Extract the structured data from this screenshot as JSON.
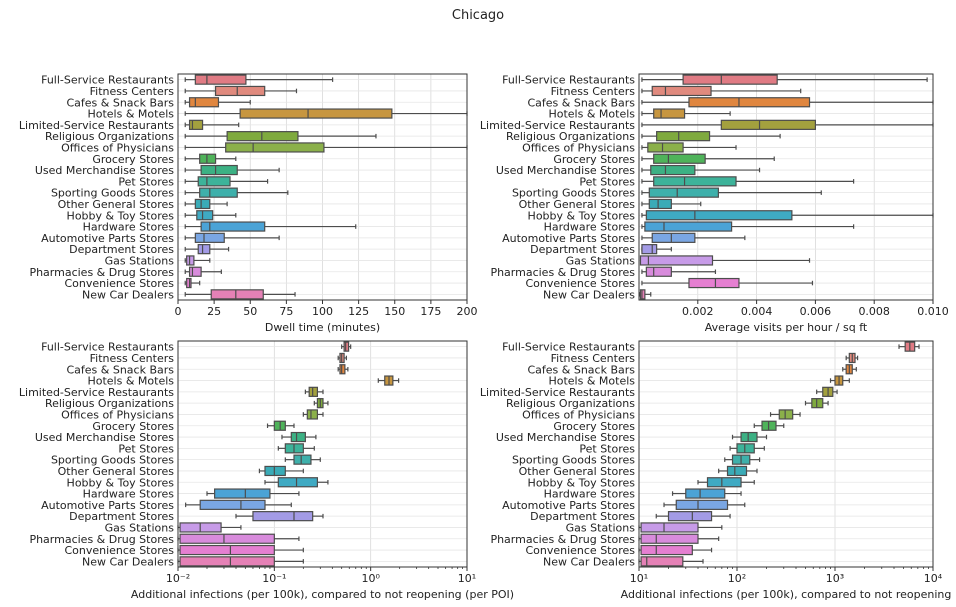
{
  "title": "Chicago",
  "colors": {
    "Full-Service Restaurants": "#e07b84",
    "Fitness Centers": "#e08a7e",
    "Cafes & Snack Bars": "#e0863f",
    "Hotels & Motels": "#c79640",
    "Limited-Service Restaurants": "#a3a13e",
    "Religious Organizations": "#7faa3e",
    "Offices of Physicians": "#8bb04a",
    "Grocery Stores": "#4fb35a",
    "Used Merchandise Stores": "#3cb184",
    "Pet Stores": "#3db39a",
    "Sporting Goods Stores": "#3eb0ab",
    "Other General Stores": "#3aabb7",
    "Hobby & Toy Stores": "#3faac3",
    "Hardware Stores": "#4ba3d6",
    "Automotive Parts Stores": "#7aa6e3",
    "Department Stores": "#a39be6",
    "Gas Stations": "#c79be8",
    "Pharmacies & Drug Stores": "#d88bdc",
    "Convenience Stores": "#e57fd1",
    "New Car Dealers": "#e581b6"
  },
  "chart_data": [
    {
      "type": "box",
      "orientation": "horizontal",
      "categories": [
        "Full-Service Restaurants",
        "Fitness Centers",
        "Cafes & Snack Bars",
        "Hotels & Motels",
        "Limited-Service Restaurants",
        "Religious Organizations",
        "Offices of Physicians",
        "Grocery Stores",
        "Used Merchandise Stores",
        "Pet Stores",
        "Sporting Goods Stores",
        "Other General Stores",
        "Hobby & Toy Stores",
        "Hardware Stores",
        "Automotive Parts Stores",
        "Department Stores",
        "Gas Stations",
        "Pharmacies & Drug Stores",
        "Convenience Stores",
        "New Car Dealers"
      ],
      "xlabel": "Dwell time (minutes)",
      "xscale": "linear",
      "xlim": [
        0,
        200
      ],
      "xticks": [
        0,
        25,
        50,
        75,
        100,
        125,
        150,
        175,
        200
      ],
      "xticklabels": [
        "0",
        "25",
        "50",
        "75",
        "100",
        "125",
        "150",
        "175",
        "200"
      ],
      "grid": true,
      "boxes": [
        [
          5,
          12,
          20,
          47,
          107
        ],
        [
          5,
          26,
          41,
          60,
          82
        ],
        [
          5,
          8,
          12,
          28,
          50
        ],
        [
          5,
          43,
          90,
          148,
          200
        ],
        [
          5,
          8,
          10,
          17,
          42
        ],
        [
          5,
          34,
          58,
          83,
          137
        ],
        [
          5,
          33,
          52,
          101,
          200
        ],
        [
          5,
          15,
          20,
          26,
          40
        ],
        [
          5,
          16,
          26,
          41,
          70
        ],
        [
          5,
          14,
          20,
          36,
          62
        ],
        [
          5,
          15,
          22,
          41,
          76
        ],
        [
          5,
          12,
          16,
          22,
          34
        ],
        [
          5,
          13,
          17,
          24,
          40
        ],
        [
          5,
          16,
          22,
          60,
          123
        ],
        [
          5,
          12,
          18,
          32,
          70
        ],
        [
          5,
          14,
          17,
          22,
          35
        ],
        [
          5,
          6,
          8,
          11,
          22
        ],
        [
          5,
          8,
          10,
          16,
          30
        ],
        [
          5,
          6,
          8,
          9,
          15
        ],
        [
          5,
          23,
          40,
          59,
          81
        ]
      ]
    },
    {
      "type": "box",
      "orientation": "horizontal",
      "categories": [
        "Full-Service Restaurants",
        "Fitness Centers",
        "Cafes & Snack Bars",
        "Hotels & Motels",
        "Limited-Service Restaurants",
        "Religious Organizations",
        "Offices of Physicians",
        "Grocery Stores",
        "Used Merchandise Stores",
        "Pet Stores",
        "Sporting Goods Stores",
        "Other General Stores",
        "Hobby & Toy Stores",
        "Hardware Stores",
        "Automotive Parts Stores",
        "Department Stores",
        "Gas Stations",
        "Pharmacies & Drug Stores",
        "Convenience Stores",
        "New Car Dealers"
      ],
      "xlabel": "Average visits per hour / sq ft",
      "xscale": "linear",
      "xlim": [
        0,
        0.01
      ],
      "xticks": [
        0.002,
        0.004,
        0.006,
        0.008,
        0.01
      ],
      "xticklabels": [
        "0.002",
        "0.004",
        "0.006",
        "0.008",
        "0.010"
      ],
      "grid": true,
      "boxes": [
        [
          0.0001,
          0.0015,
          0.0028,
          0.0047,
          0.0098
        ],
        [
          0.0001,
          0.00045,
          0.0009,
          0.00245,
          0.0055
        ],
        [
          0.0001,
          0.0017,
          0.0034,
          0.0058,
          0.01
        ],
        [
          0.0001,
          0.0005,
          0.00075,
          0.00155,
          0.0031
        ],
        [
          0.0001,
          0.0028,
          0.0041,
          0.006,
          0.01
        ],
        [
          0.0001,
          0.0006,
          0.00135,
          0.0024,
          0.0048
        ],
        [
          0.0001,
          0.0003,
          0.0008,
          0.0015,
          0.0033
        ],
        [
          0.0001,
          0.0005,
          0.001,
          0.00225,
          0.0046
        ],
        [
          0.0001,
          0.0004,
          0.0009,
          0.0019,
          0.0041
        ],
        [
          0.0001,
          0.0005,
          0.00155,
          0.0033,
          0.0073
        ],
        [
          0.0001,
          0.00035,
          0.0013,
          0.0027,
          0.0062
        ],
        [
          0.0001,
          0.00035,
          0.00065,
          0.0011,
          0.0021
        ],
        [
          0.0001,
          0.00025,
          0.0019,
          0.0052,
          0.01
        ],
        [
          0.0001,
          0.0002,
          0.00085,
          0.00315,
          0.0073
        ],
        [
          0.0001,
          0.00045,
          0.0011,
          0.0019,
          0.0036
        ],
        [
          0.0001,
          0.0001,
          0.00045,
          0.0006,
          0.0011
        ],
        [
          0.0001,
          5e-05,
          0.00032,
          0.0025,
          0.0058
        ],
        [
          0.0001,
          0.00025,
          0.0005,
          0.0011,
          0.0026
        ],
        [
          0.0001,
          0.0017,
          0.0026,
          0.0034,
          0.0059
        ],
        [
          2e-05,
          5e-05,
          0.0001,
          0.0002,
          0.0004
        ]
      ]
    },
    {
      "type": "box",
      "orientation": "horizontal",
      "categories": [
        "Full-Service Restaurants",
        "Fitness Centers",
        "Cafes & Snack Bars",
        "Hotels & Motels",
        "Limited-Service Restaurants",
        "Religious Organizations",
        "Offices of Physicians",
        "Grocery Stores",
        "Used Merchandise Stores",
        "Pet Stores",
        "Sporting Goods Stores",
        "Other General Stores",
        "Hobby & Toy Stores",
        "Hardware Stores",
        "Automotive Parts Stores",
        "Department Stores",
        "Gas Stations",
        "Pharmacies & Drug Stores",
        "Convenience Stores",
        "New Car Dealers"
      ],
      "xlabel": "Additional infections (per 100k), compared to not reopening (per POI)",
      "xscale": "log",
      "xlim": [
        0.01,
        10
      ],
      "xticks": [
        0.01,
        0.1,
        1,
        10
      ],
      "xticklabels": [
        "10⁻²",
        "10⁻¹",
        "10⁰",
        "10¹"
      ],
      "grid": true,
      "boxes": [
        [
          0.5,
          0.53,
          0.55,
          0.59,
          0.62
        ],
        [
          0.46,
          0.48,
          0.5,
          0.53,
          0.56
        ],
        [
          0.46,
          0.48,
          0.5,
          0.54,
          0.58
        ],
        [
          1.2,
          1.4,
          1.55,
          1.7,
          1.95
        ],
        [
          0.21,
          0.23,
          0.25,
          0.28,
          0.32
        ],
        [
          0.26,
          0.28,
          0.3,
          0.32,
          0.36
        ],
        [
          0.2,
          0.22,
          0.24,
          0.28,
          0.32
        ],
        [
          0.085,
          0.1,
          0.115,
          0.13,
          0.16
        ],
        [
          0.12,
          0.15,
          0.17,
          0.21,
          0.27
        ],
        [
          0.11,
          0.13,
          0.16,
          0.2,
          0.26
        ],
        [
          0.13,
          0.16,
          0.19,
          0.24,
          0.3
        ],
        [
          0.07,
          0.08,
          0.1,
          0.13,
          0.2
        ],
        [
          0.08,
          0.11,
          0.17,
          0.28,
          0.36
        ],
        [
          0.02,
          0.024,
          0.05,
          0.09,
          0.18
        ],
        [
          0.012,
          0.017,
          0.045,
          0.08,
          0.15
        ],
        [
          0.04,
          0.06,
          0.16,
          0.25,
          0.32
        ],
        [
          0.01,
          0.0105,
          0.017,
          0.028,
          0.045
        ],
        [
          0.01,
          0.0105,
          0.03,
          0.1,
          0.18
        ],
        [
          0.01,
          0.0105,
          0.035,
          0.1,
          0.2
        ],
        [
          0.01,
          0.0105,
          0.035,
          0.1,
          0.2
        ]
      ]
    },
    {
      "type": "box",
      "orientation": "horizontal",
      "categories": [
        "Full-Service Restaurants",
        "Fitness Centers",
        "Cafes & Snack Bars",
        "Hotels & Motels",
        "Limited-Service Restaurants",
        "Religious Organizations",
        "Offices of Physicians",
        "Grocery Stores",
        "Used Merchandise Stores",
        "Pet Stores",
        "Sporting Goods Stores",
        "Other General Stores",
        "Hobby & Toy Stores",
        "Hardware Stores",
        "Automotive Parts Stores",
        "Department Stores",
        "Gas Stations",
        "Pharmacies & Drug Stores",
        "Convenience Stores",
        "New Car Dealers"
      ],
      "xlabel": "Additional infections (per 100k), compared to not reopening",
      "xscale": "log",
      "xlim": [
        10,
        10000
      ],
      "xticks": [
        10,
        100,
        1000,
        10000
      ],
      "xticklabels": [
        "10¹",
        "10²",
        "10³",
        "10⁴"
      ],
      "grid": true,
      "boxes": [
        [
          4500,
          5200,
          5800,
          6500,
          7200
        ],
        [
          1300,
          1400,
          1500,
          1600,
          1700
        ],
        [
          1200,
          1300,
          1400,
          1500,
          1650
        ],
        [
          900,
          1000,
          1100,
          1200,
          1400
        ],
        [
          650,
          750,
          850,
          950,
          1050
        ],
        [
          500,
          580,
          650,
          750,
          850
        ],
        [
          220,
          270,
          310,
          370,
          440
        ],
        [
          150,
          180,
          210,
          250,
          300
        ],
        [
          90,
          110,
          130,
          160,
          200
        ],
        [
          85,
          100,
          120,
          150,
          190
        ],
        [
          75,
          90,
          110,
          135,
          170
        ],
        [
          65,
          80,
          95,
          125,
          160
        ],
        [
          40,
          50,
          70,
          110,
          150
        ],
        [
          22,
          30,
          42,
          75,
          110
        ],
        [
          18,
          24,
          40,
          80,
          120
        ],
        [
          15,
          20,
          35,
          55,
          85
        ],
        [
          10,
          10.5,
          18,
          40,
          70
        ],
        [
          10,
          10.5,
          15,
          40,
          65
        ],
        [
          10,
          10.5,
          15,
          35,
          55
        ],
        [
          10,
          10.5,
          12,
          28,
          45
        ]
      ]
    }
  ]
}
